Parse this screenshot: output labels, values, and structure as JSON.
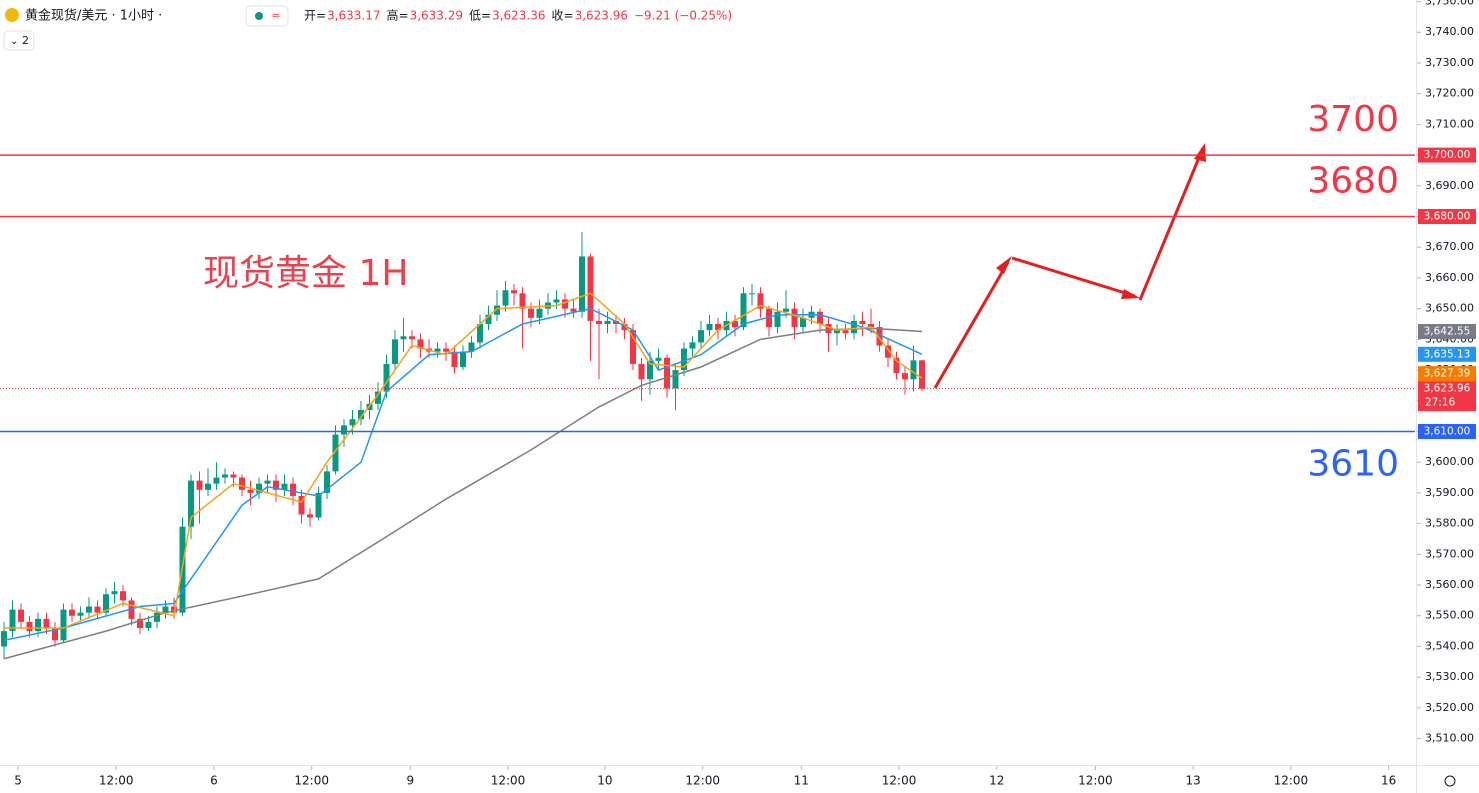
{
  "header": {
    "symbol": "黄金现货/美元 · 1小时 ·",
    "fields": [
      {
        "name": "开=",
        "value": "3,633.17"
      },
      {
        "name": "高=",
        "value": "3,633.29"
      },
      {
        "name": "低=",
        "value": "3,623.36"
      },
      {
        "name": "收=",
        "value": "3,623.96"
      }
    ],
    "change": "−9.21 (−0.25%)",
    "indicator_count": "2"
  },
  "chart_data": {
    "type": "candlestick",
    "watermark": "现货黄金 1H",
    "up_color": "#089981",
    "down_color": "#f23645",
    "xlim": [
      -0.47,
      166
    ],
    "ylim": [
      3501.4,
      3750.5
    ],
    "xticks": [
      {
        "value": 1.65,
        "label": "5"
      },
      {
        "value": 13.2,
        "label": "12:00"
      },
      {
        "value": 24.7,
        "label": "6"
      },
      {
        "value": 36.2,
        "label": "12:00"
      },
      {
        "value": 47.8,
        "label": "9"
      },
      {
        "value": 59.3,
        "label": "12:00"
      },
      {
        "value": 70.7,
        "label": "10"
      },
      {
        "value": 82.2,
        "label": "12:00"
      },
      {
        "value": 93.8,
        "label": "11"
      },
      {
        "value": 105.3,
        "label": "12:00"
      },
      {
        "value": 116.8,
        "label": "12"
      },
      {
        "value": 128.4,
        "label": "12:00"
      },
      {
        "value": 139.9,
        "label": "13"
      },
      {
        "value": 151.4,
        "label": "12:00"
      },
      {
        "value": 162.9,
        "label": "16"
      }
    ],
    "yticks": [
      {
        "value": 3510,
        "label": "3,510.00"
      },
      {
        "value": 3520,
        "label": "3,520.00"
      },
      {
        "value": 3530,
        "label": "3,530.00"
      },
      {
        "value": 3540,
        "label": "3,540.00"
      },
      {
        "value": 3550,
        "label": "3,550.00"
      },
      {
        "value": 3560,
        "label": "3,560.00"
      },
      {
        "value": 3570,
        "label": "3,570.00"
      },
      {
        "value": 3580,
        "label": "3,580.00"
      },
      {
        "value": 3590,
        "label": "3,590.00"
      },
      {
        "value": 3600,
        "label": "3,600.00"
      },
      {
        "value": 3610,
        "label": "3,610.00"
      },
      {
        "value": 3620,
        "label": "3,620.00"
      },
      {
        "value": 3630,
        "label": "3,630.00"
      },
      {
        "value": 3640,
        "label": "3,640.00"
      },
      {
        "value": 3650,
        "label": "3,650.00"
      },
      {
        "value": 3660,
        "label": "3,660.00"
      },
      {
        "value": 3670,
        "label": "3,670.00"
      },
      {
        "value": 3680,
        "label": "3,680.00"
      },
      {
        "value": 3690,
        "label": "3,690.00"
      },
      {
        "value": 3700,
        "label": "3,700.00"
      },
      {
        "value": 3710,
        "label": "3,710.00"
      },
      {
        "value": 3720,
        "label": "3,720.00"
      },
      {
        "value": 3730,
        "label": "3,730.00"
      },
      {
        "value": 3740,
        "label": "3,740.00"
      },
      {
        "value": 3750,
        "label": "3,750.00"
      }
    ],
    "ohlc": [
      [
        3540,
        3548,
        3536,
        3545
      ],
      [
        3545,
        3555,
        3543,
        3552
      ],
      [
        3552,
        3554,
        3546,
        3548
      ],
      [
        3548,
        3550,
        3543,
        3545
      ],
      [
        3545,
        3551,
        3543,
        3549
      ],
      [
        3549,
        3551,
        3544,
        3546
      ],
      [
        3546,
        3548,
        3540,
        3542
      ],
      [
        3542,
        3554,
        3541,
        3552
      ],
      [
        3552,
        3554,
        3548,
        3550
      ],
      [
        3550,
        3553,
        3548,
        3551
      ],
      [
        3551,
        3556,
        3549,
        3553
      ],
      [
        3553,
        3555,
        3549,
        3551
      ],
      [
        3551,
        3559,
        3550,
        3557
      ],
      [
        3557,
        3561,
        3554,
        3558
      ],
      [
        3558,
        3560,
        3553,
        3555
      ],
      [
        3555,
        3556,
        3547,
        3549
      ],
      [
        3549,
        3551,
        3544,
        3546
      ],
      [
        3546,
        3550,
        3545,
        3548
      ],
      [
        3548,
        3553,
        3546,
        3551
      ],
      [
        3551,
        3555,
        3549,
        3553
      ],
      [
        3553,
        3556,
        3549,
        3551
      ],
      [
        3551,
        3582,
        3550,
        3579
      ],
      [
        3579,
        3596,
        3575,
        3594
      ],
      [
        3594,
        3597,
        3580,
        3591
      ],
      [
        3591,
        3598,
        3589,
        3593
      ],
      [
        3593,
        3600,
        3591,
        3595
      ],
      [
        3595,
        3598,
        3593,
        3596
      ],
      [
        3596,
        3597,
        3592,
        3595
      ],
      [
        3595,
        3596,
        3589,
        3591
      ],
      [
        3591,
        3594,
        3586,
        3590
      ],
      [
        3590,
        3595,
        3588,
        3593
      ],
      [
        3593,
        3596,
        3590,
        3594
      ],
      [
        3594,
        3596,
        3587,
        3591
      ],
      [
        3591,
        3596,
        3589,
        3593
      ],
      [
        3593,
        3595,
        3586,
        3589
      ],
      [
        3589,
        3591,
        3580,
        3583
      ],
      [
        3583,
        3585,
        3579,
        3582
      ],
      [
        3582,
        3592,
        3581,
        3590
      ],
      [
        3590,
        3599,
        3588,
        3597
      ],
      [
        3597,
        3612,
        3596,
        3609
      ],
      [
        3609,
        3614,
        3605,
        3612
      ],
      [
        3612,
        3617,
        3609,
        3614
      ],
      [
        3614,
        3620,
        3612,
        3617
      ],
      [
        3617,
        3622,
        3614,
        3619
      ],
      [
        3619,
        3626,
        3617,
        3623
      ],
      [
        3623,
        3635,
        3621,
        3632
      ],
      [
        3632,
        3643,
        3630,
        3640
      ],
      [
        3640,
        3647,
        3636,
        3641
      ],
      [
        3641,
        3643,
        3637,
        3640
      ],
      [
        3640,
        3642,
        3634,
        3637
      ],
      [
        3637,
        3640,
        3634,
        3636
      ],
      [
        3636,
        3639,
        3634,
        3637
      ],
      [
        3637,
        3639,
        3633,
        3636
      ],
      [
        3636,
        3638,
        3629,
        3631
      ],
      [
        3631,
        3638,
        3630,
        3636
      ],
      [
        3636,
        3641,
        3634,
        3639
      ],
      [
        3639,
        3648,
        3637,
        3645
      ],
      [
        3645,
        3651,
        3643,
        3648
      ],
      [
        3648,
        3656,
        3646,
        3651
      ],
      [
        3651,
        3659,
        3649,
        3656
      ],
      [
        3656,
        3658,
        3651,
        3655
      ],
      [
        3655,
        3657,
        3637,
        3650
      ],
      [
        3650,
        3652,
        3644,
        3647
      ],
      [
        3647,
        3653,
        3645,
        3650
      ],
      [
        3650,
        3655,
        3648,
        3652
      ],
      [
        3652,
        3656,
        3650,
        3653
      ],
      [
        3653,
        3655,
        3647,
        3650
      ],
      [
        3650,
        3653,
        3647,
        3649
      ],
      [
        3649,
        3675,
        3647,
        3667
      ],
      [
        3667,
        3668,
        3633,
        3646
      ],
      [
        3646,
        3650,
        3627,
        3645
      ],
      [
        3645,
        3649,
        3642,
        3646
      ],
      [
        3646,
        3648,
        3642,
        3645
      ],
      [
        3645,
        3647,
        3640,
        3643
      ],
      [
        3643,
        3645,
        3630,
        3632
      ],
      [
        3632,
        3634,
        3620,
        3627
      ],
      [
        3627,
        3636,
        3622,
        3633
      ],
      [
        3633,
        3637,
        3630,
        3634
      ],
      [
        3634,
        3635,
        3621,
        3624
      ],
      [
        3624,
        3632,
        3617,
        3630
      ],
      [
        3630,
        3639,
        3628,
        3637
      ],
      [
        3637,
        3641,
        3634,
        3639
      ],
      [
        3639,
        3646,
        3637,
        3643
      ],
      [
        3643,
        3648,
        3641,
        3645
      ],
      [
        3645,
        3647,
        3640,
        3643
      ],
      [
        3643,
        3649,
        3641,
        3646
      ],
      [
        3646,
        3648,
        3641,
        3644
      ],
      [
        3644,
        3657,
        3643,
        3655
      ],
      [
        3655,
        3658,
        3651,
        3655
      ],
      [
        3655,
        3657,
        3647,
        3650
      ],
      [
        3650,
        3651,
        3641,
        3644
      ],
      [
        3644,
        3652,
        3642,
        3649
      ],
      [
        3649,
        3656,
        3647,
        3650
      ],
      [
        3650,
        3652,
        3640,
        3644
      ],
      [
        3644,
        3650,
        3642,
        3647
      ],
      [
        3647,
        3651,
        3645,
        3649
      ],
      [
        3649,
        3650,
        3642,
        3645
      ],
      [
        3645,
        3647,
        3636,
        3642
      ],
      [
        3642,
        3645,
        3638,
        3643
      ],
      [
        3643,
        3645,
        3640,
        3642
      ],
      [
        3642,
        3648,
        3640,
        3646
      ],
      [
        3646,
        3649,
        3641,
        3645
      ],
      [
        3645,
        3650,
        3642,
        3644
      ],
      [
        3644,
        3646,
        3636,
        3638
      ],
      [
        3638,
        3640,
        3631,
        3634
      ],
      [
        3634,
        3636,
        3627,
        3629
      ],
      [
        3629,
        3631,
        3622,
        3627
      ],
      [
        3627,
        3638,
        3623,
        3633.17
      ],
      [
        3633.17,
        3633.29,
        3623.36,
        3623.96
      ]
    ],
    "close_label": "3,623.96",
    "countdown": "27:16",
    "series": [
      {
        "color": "#7e7e7e",
        "badge_color": "#787b86",
        "x": [
          0,
          12,
          19,
          29,
          37,
          44,
          52,
          62,
          70,
          75,
          82,
          89,
          96,
          102,
          108
        ],
        "values": [
          3536,
          3545,
          3551,
          3557,
          3562,
          3574,
          3588,
          3604,
          3618,
          3625,
          3631,
          3640,
          3643,
          3643.6,
          3642.55
        ],
        "last_label": "3,642.55"
      },
      {
        "color": "#2196f3",
        "badge_color": "#2196f3",
        "x": [
          0,
          7,
          16,
          20,
          23,
          28,
          31,
          37,
          42,
          45,
          50,
          55,
          61,
          69,
          74,
          77,
          82,
          87,
          91,
          96,
          101,
          108
        ],
        "values": [
          3542,
          3546,
          3553,
          3554,
          3566,
          3586,
          3592,
          3589,
          3600,
          3623,
          3635,
          3636,
          3645,
          3650,
          3643,
          3630,
          3635,
          3645,
          3648,
          3648,
          3644,
          3635.13
        ],
        "last_label": "3,635.13"
      },
      {
        "color": "#f7a21b",
        "badge_color": "#f57c00",
        "x": [
          0,
          7,
          14,
          20,
          22,
          27,
          35,
          38,
          44,
          48,
          52,
          58,
          65,
          69,
          73,
          76,
          80,
          84,
          89,
          94,
          98,
          102,
          105,
          108
        ],
        "values": [
          3546,
          3546,
          3554,
          3550,
          3582,
          3593,
          3587,
          3600,
          3622,
          3638,
          3635,
          3650,
          3651,
          3655,
          3645,
          3632,
          3631,
          3643,
          3651,
          3647,
          3643,
          3644,
          3633,
          3627.39
        ],
        "last_label": "3,627.39"
      }
    ],
    "levels": [
      {
        "value": 3700,
        "label": "3700",
        "axis_label": "3,700.00",
        "color": "#f23645"
      },
      {
        "value": 3680,
        "label": "3680",
        "axis_label": "3,680.00",
        "color": "#f23645"
      },
      {
        "value": 3610,
        "label": "3610",
        "axis_label": "3,610.00",
        "color": "#2962ff"
      }
    ]
  }
}
